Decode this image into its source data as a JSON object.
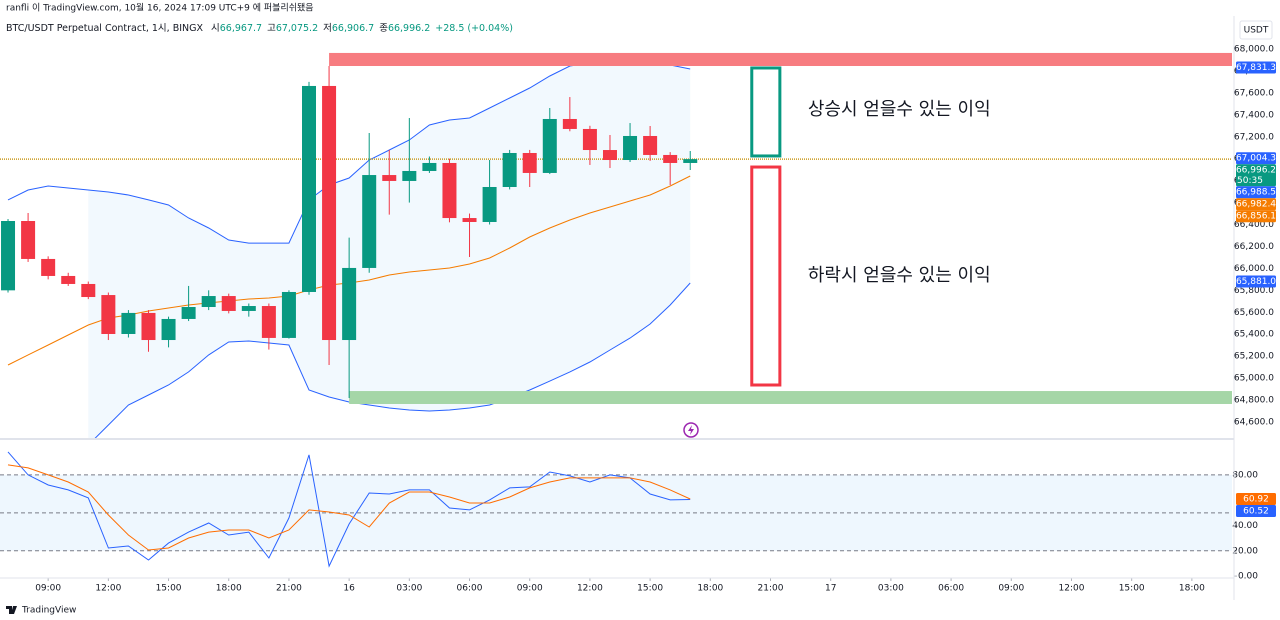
{
  "header": {
    "published": "ranfli 이 TradingView.com, 10월 16, 2024 17:09 UTC+9 에 퍼블리쉬됐음",
    "currency": "USDT",
    "footer": "TradingView"
  },
  "chart_data": [
    {
      "type": "candlestick",
      "title": "BTC/USDT Perpetual Contract, 1시, BINGX",
      "ohlc_legend": [
        {
          "label": "시",
          "value": "66,967.7"
        },
        {
          "label": "고",
          "value": "67,075.2"
        },
        {
          "label": "저",
          "value": "66,906.7"
        },
        {
          "label": "종",
          "value": "66,996.2"
        }
      ],
      "change": "+28.5 (+0.04%)",
      "up_color": "#089981",
      "down_color": "#f23645",
      "x": [
        "2024-10-15T07:00",
        "2024-10-15T08:00",
        "2024-10-15T09:00",
        "2024-10-15T10:00",
        "2024-10-15T11:00",
        "2024-10-15T12:00",
        "2024-10-15T13:00",
        "2024-10-15T14:00",
        "2024-10-15T15:00",
        "2024-10-15T16:00",
        "2024-10-15T17:00",
        "2024-10-15T18:00",
        "2024-10-15T19:00",
        "2024-10-15T20:00",
        "2024-10-15T21:00",
        "2024-10-15T22:00",
        "2024-10-15T23:00",
        "2024-10-16T00:00",
        "2024-10-16T01:00",
        "2024-10-16T02:00",
        "2024-10-16T03:00",
        "2024-10-16T04:00",
        "2024-10-16T05:00",
        "2024-10-16T06:00",
        "2024-10-16T07:00",
        "2024-10-16T08:00",
        "2024-10-16T09:00",
        "2024-10-16T10:00",
        "2024-10-16T11:00",
        "2024-10-16T12:00",
        "2024-10-16T13:00",
        "2024-10-16T14:00",
        "2024-10-16T15:00",
        "2024-10-16T16:00",
        "2024-10-16T17:00"
      ],
      "open": [
        65800,
        66432,
        66086,
        65931,
        65858,
        65757,
        65402,
        65594,
        65347,
        65539,
        65648,
        65748,
        65612,
        65657,
        65366,
        65785,
        67663,
        65347,
        66004,
        66851,
        66797,
        66888,
        66961,
        66459,
        66423,
        66742,
        67052,
        66870,
        67362,
        67271,
        67079,
        66988,
        67207,
        67034,
        66961
      ],
      "high": [
        66450,
        66505,
        66110,
        65960,
        65880,
        65780,
        65620,
        65620,
        65560,
        65840,
        65800,
        65770,
        65680,
        65680,
        65800,
        67700,
        67845,
        66280,
        67234,
        67080,
        67371,
        67020,
        67000,
        66500,
        66988,
        67080,
        67080,
        67462,
        67562,
        67300,
        67216,
        67325,
        67298,
        67060,
        67070
      ],
      "low": [
        65780,
        66059,
        65900,
        65840,
        65720,
        65347,
        65370,
        65240,
        65280,
        65520,
        65620,
        65590,
        65560,
        65260,
        65360,
        65760,
        65119,
        64818,
        65960,
        66490,
        66600,
        66870,
        66420,
        66104,
        66400,
        66720,
        66742,
        66860,
        67250,
        66943,
        66915,
        66970,
        66980,
        66760,
        66897
      ],
      "close": [
        66432,
        66086,
        65931,
        65858,
        65739,
        65402,
        65594,
        65347,
        65539,
        65648,
        65748,
        65612,
        65657,
        65366,
        65785,
        67663,
        65347,
        66004,
        66851,
        66797,
        66888,
        66961,
        66459,
        66423,
        66742,
        67052,
        66870,
        67362,
        67271,
        67079,
        66988,
        67207,
        67034,
        66961,
        66996.2
      ],
      "bollinger": {
        "upper": [
          66624,
          66715,
          66751,
          66733,
          66715,
          66696,
          66669,
          66624,
          66578,
          66459,
          66368,
          66259,
          66231,
          66231,
          66231,
          66624,
          66760,
          66824,
          66988,
          67079,
          67170,
          67307,
          67353,
          67371,
          67462,
          67553,
          67644,
          67754,
          67845,
          67872,
          67900,
          67900,
          67881,
          67854,
          67818
        ],
        "basis": [
          65119,
          65211,
          65302,
          65393,
          65484,
          65548,
          65575,
          65612,
          65639,
          65666,
          65685,
          65703,
          65721,
          65730,
          65748,
          65803,
          65849,
          65867,
          65894,
          65940,
          65967,
          65985,
          66004,
          66040,
          66095,
          66186,
          66286,
          66368,
          66441,
          66505,
          66560,
          66614,
          66669,
          66751,
          66842
        ],
        "lower": [
          null,
          null,
          null,
          null,
          64390,
          64572,
          64755,
          64846,
          64937,
          65056,
          65211,
          65329,
          65338,
          65320,
          65302,
          64891,
          64828,
          64782,
          64755,
          64727,
          64709,
          64700,
          64709,
          64727,
          64755,
          64819,
          64891,
          64973,
          65056,
          65147,
          65256,
          65365,
          65493,
          65666,
          65867
        ],
        "band_color": "#2962ff",
        "basis_color": "#f57c00"
      },
      "xlim": [
        "2024-10-15T06:36",
        "2024-10-17T20:00"
      ],
      "ylim": [
        64463,
        68082
      ],
      "grid": false,
      "xticks": [
        {
          "value": "2024-10-15T09:00",
          "label": "09:00"
        },
        {
          "value": "2024-10-15T12:00",
          "label": "12:00"
        },
        {
          "value": "2024-10-15T15:00",
          "label": "15:00"
        },
        {
          "value": "2024-10-15T18:00",
          "label": "18:00"
        },
        {
          "value": "2024-10-15T21:00",
          "label": "21:00"
        },
        {
          "value": "2024-10-16T00:00",
          "label": "16"
        },
        {
          "value": "2024-10-16T03:00",
          "label": "03:00"
        },
        {
          "value": "2024-10-16T06:00",
          "label": "06:00"
        },
        {
          "value": "2024-10-16T09:00",
          "label": "09:00"
        },
        {
          "value": "2024-10-16T12:00",
          "label": "12:00"
        },
        {
          "value": "2024-10-16T15:00",
          "label": "15:00"
        },
        {
          "value": "2024-10-16T18:00",
          "label": "18:00"
        },
        {
          "value": "2024-10-16T21:00",
          "label": "21:00"
        },
        {
          "value": "2024-10-17T00:00",
          "label": "17"
        },
        {
          "value": "2024-10-17T03:00",
          "label": "03:00"
        },
        {
          "value": "2024-10-17T06:00",
          "label": "06:00"
        },
        {
          "value": "2024-10-17T09:00",
          "label": "09:00"
        },
        {
          "value": "2024-10-17T12:00",
          "label": "12:00"
        },
        {
          "value": "2024-10-17T15:00",
          "label": "15:00"
        },
        {
          "value": "2024-10-17T18:00",
          "label": "18:00"
        }
      ],
      "yticks": [
        {
          "value": 68000,
          "label": "68,000.0"
        },
        {
          "value": 67800,
          "label": "67,800.0"
        },
        {
          "value": 67600,
          "label": "67,600.0"
        },
        {
          "value": 67400,
          "label": "67,400.0"
        },
        {
          "value": 67200,
          "label": "67,200.0"
        },
        {
          "value": 67000,
          "label": "67,000.0"
        },
        {
          "value": 66800,
          "label": "66,800.0"
        },
        {
          "value": 66600,
          "label": "66,600.0"
        },
        {
          "value": 66400,
          "label": "66,400.0"
        },
        {
          "value": 66200,
          "label": "66,200.0"
        },
        {
          "value": 66000,
          "label": "66,000.0"
        },
        {
          "value": 65800,
          "label": "65,800.0"
        },
        {
          "value": 65600,
          "label": "65,600.0"
        },
        {
          "value": 65400,
          "label": "65,400.0"
        },
        {
          "value": 65200,
          "label": "65,200.0"
        },
        {
          "value": 65000,
          "label": "65,000.0"
        },
        {
          "value": 64800,
          "label": "64,800.0"
        },
        {
          "value": 64600,
          "label": "64,600.0"
        }
      ],
      "price_badges": [
        {
          "value": 67831.3,
          "label": "67,831.3",
          "color": "#2962ff"
        },
        {
          "value": 67004.3,
          "label": "67,004.3",
          "color": "#2962ff"
        },
        {
          "value": 66996.2,
          "label": "66,996.2",
          "color": "#089981",
          "countdown": "50:35"
        },
        {
          "value": 66988.5,
          "label": "66,988.5",
          "color": "#2962ff"
        },
        {
          "value": 66982.4,
          "label": "66,982.4",
          "color": "#f57c00"
        },
        {
          "value": 66856.1,
          "label": "66,856.1",
          "color": "#f57c00"
        },
        {
          "value": 65881.0,
          "label": "65,881.0",
          "color": "#2962ff"
        }
      ],
      "zones": [
        {
          "top": 67964,
          "bottom": 67845,
          "start": "2024-10-15T23:00",
          "color": "#f77c80"
        },
        {
          "top": 64882,
          "bottom": 64764,
          "start": "2024-10-16T00:00",
          "color": "#a5d6a7"
        }
      ],
      "boxes": [
        {
          "top": 67827,
          "bottom": 67025,
          "start": "2024-10-16T20:04",
          "end": "2024-10-16T21:28",
          "color": "#089981",
          "text": "상승시 얻을수 있는 이익"
        },
        {
          "top": 66924,
          "bottom": 64937,
          "start": "2024-10-16T20:04",
          "end": "2024-10-16T21:28",
          "color": "#f23645",
          "text": "하락시 얻을수 있는 이익"
        }
      ]
    },
    {
      "type": "line",
      "series": [
        {
          "color": "#2962ff",
          "values": [
            98.2,
            80,
            72,
            68.1,
            61.8,
            22.2,
            23.8,
            12.7,
            26.1,
            34.8,
            42,
            32.5,
            34.8,
            14.3,
            45.9,
            95.8,
            7.9,
            41.2,
            65.7,
            64.9,
            68.1,
            68.1,
            53.8,
            52.3,
            60.2,
            69.7,
            70.5,
            82.3,
            79.2,
            74.4,
            80,
            77.6,
            64.9,
            60.2,
            60.52
          ]
        },
        {
          "color": "#ff6d00",
          "values": [
            87.9,
            85.5,
            80,
            74.4,
            66.5,
            48.3,
            32.5,
            20.6,
            22.2,
            30.1,
            34.8,
            36.4,
            36.4,
            30.1,
            36.4,
            52.3,
            50.7,
            48.3,
            38.8,
            57.8,
            66.5,
            66.5,
            62.5,
            57.8,
            57.8,
            62.5,
            69.7,
            74.4,
            77.6,
            77.6,
            77.6,
            77.6,
            74.4,
            68.1,
            60.92
          ]
        }
      ],
      "ylim": [
        -11,
        106
      ],
      "yticks": [
        {
          "value": 80,
          "label": "80.00"
        },
        {
          "value": 40,
          "label": "40.00"
        },
        {
          "value": 20,
          "label": "20.00"
        },
        {
          "value": 0,
          "label": "0.00"
        }
      ],
      "levels": [
        80,
        50,
        20
      ],
      "badges": [
        {
          "value": 60.92,
          "label": "60.92",
          "color": "#ff6d00"
        },
        {
          "value": 60.52,
          "label": "60.52",
          "color": "#2962ff"
        }
      ]
    }
  ]
}
